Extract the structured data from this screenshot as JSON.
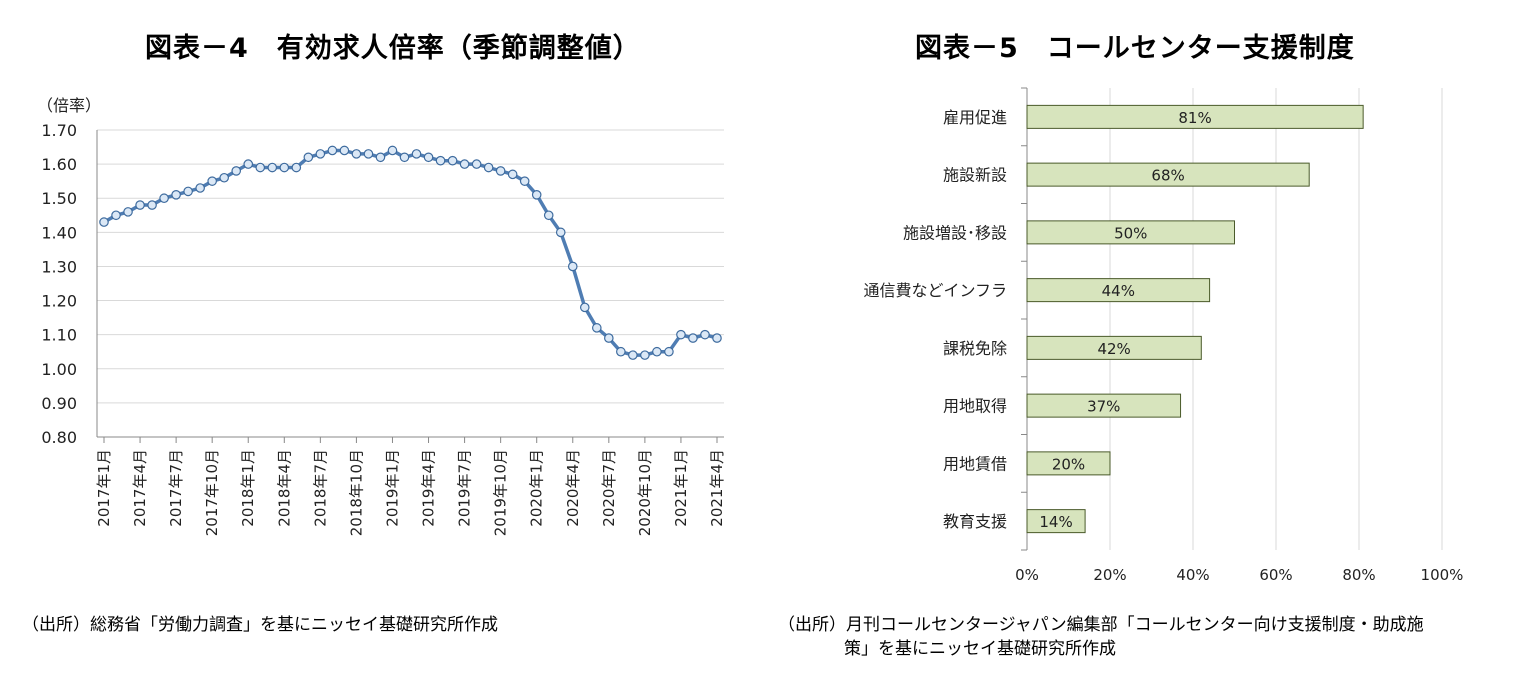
{
  "left": {
    "title": "図表－4　有効求人倍率（季節調整値）",
    "source": "（出所）総務省「労働力調査」を基にニッセイ基礎研究所作成",
    "chart_data": {
      "type": "line",
      "title": "図表－4　有効求人倍率（季節調整値）",
      "ylabel": "（倍率）",
      "ylim": [
        0.8,
        1.7
      ],
      "ytick_step": 0.1,
      "grid": true,
      "x_tick_labels": [
        "2017年1月",
        "2017年4月",
        "2017年7月",
        "2017年10月",
        "2018年1月",
        "2018年4月",
        "2018年7月",
        "2018年10月",
        "2019年1月",
        "2019年4月",
        "2019年7月",
        "2019年10月",
        "2020年1月",
        "2020年4月",
        "2020年7月",
        "2020年10月",
        "2021年1月",
        "2021年4月"
      ],
      "series": [
        {
          "values": [
            1.43,
            1.45,
            1.46,
            1.48,
            1.48,
            1.5,
            1.51,
            1.52,
            1.53,
            1.55,
            1.56,
            1.58,
            1.6,
            1.59,
            1.59,
            1.59,
            1.59,
            1.62,
            1.63,
            1.64,
            1.64,
            1.63,
            1.63,
            1.62,
            1.64,
            1.62,
            1.63,
            1.62,
            1.61,
            1.61,
            1.6,
            1.6,
            1.59,
            1.58,
            1.57,
            1.55,
            1.51,
            1.45,
            1.4,
            1.3,
            1.18,
            1.12,
            1.09,
            1.05,
            1.04,
            1.04,
            1.05,
            1.05,
            1.1,
            1.09,
            1.1,
            1.09
          ]
        }
      ],
      "color": "#4f7db3"
    }
  },
  "right": {
    "title": "図表－5　コールセンター支援制度",
    "source_line1": "（出所）月刊コールセンタージャパン編集部「コールセンター向け支援制度・助成施",
    "source_line2": "策」を基にニッセイ基礎研究所作成",
    "chart_data": {
      "type": "bar",
      "orientation": "horizontal",
      "title": "図表－5　コールセンター支援制度",
      "categories": [
        "雇用促進",
        "施設新設",
        "施設増設･移設",
        "通信費などインフラ",
        "課税免除",
        "用地取得",
        "用地賃借",
        "教育支援"
      ],
      "values": [
        81,
        68,
        50,
        44,
        42,
        37,
        20,
        14
      ],
      "data_labels": [
        "81%",
        "68%",
        "50%",
        "44%",
        "42%",
        "37%",
        "20%",
        "14%"
      ],
      "xlim": [
        0,
        100
      ],
      "x_tick_labels": [
        "0%",
        "20%",
        "40%",
        "60%",
        "80%",
        "100%"
      ],
      "grid": true,
      "bar_color": "#d7e4bd",
      "bar_edge": "#4a5a2a"
    }
  }
}
